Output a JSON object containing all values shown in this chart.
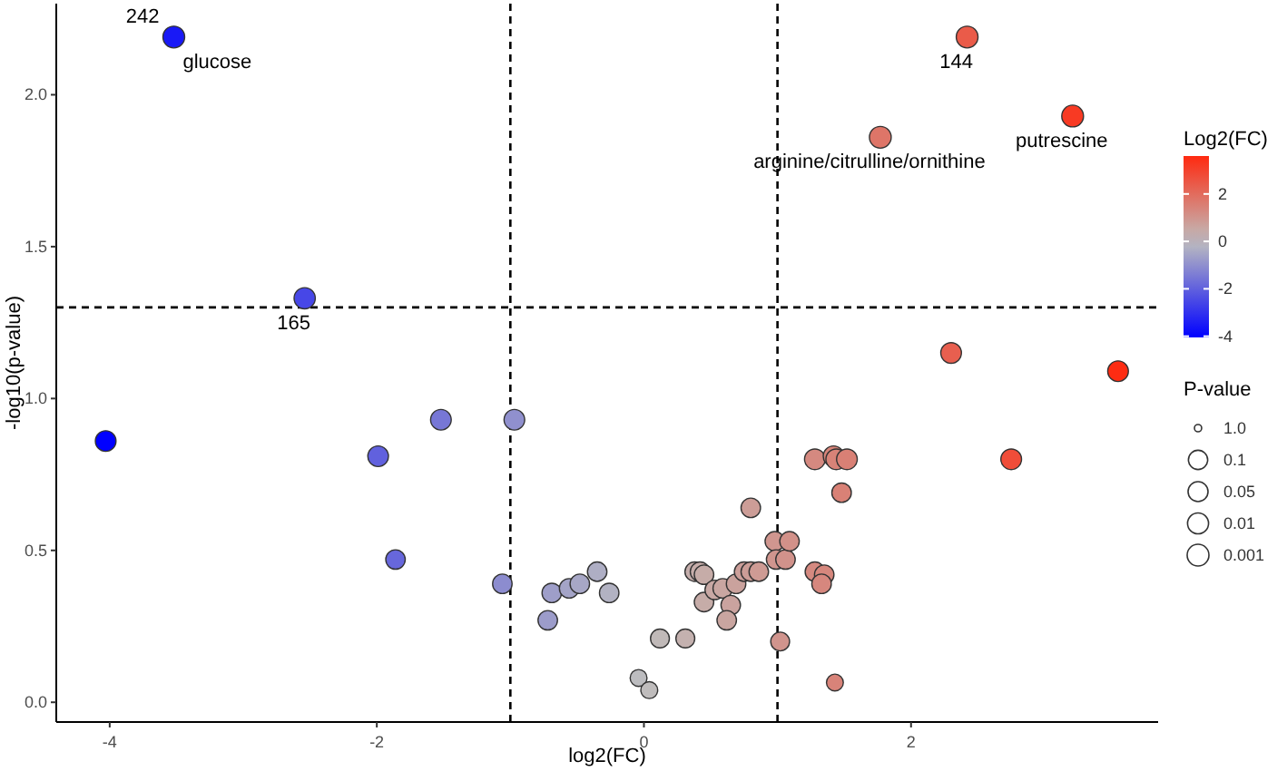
{
  "chart_data": {
    "type": "bubble",
    "xlabel": "log2(FC)",
    "ylabel": "-log10(p-value)",
    "clabel": "Log2(FC)",
    "legend_title": "P-value",
    "grid": false,
    "xlim": [
      -4.4,
      3.85
    ],
    "xticks": [
      -4,
      -2,
      0,
      2
    ],
    "ylim": [
      -0.065,
      2.3
    ],
    "yticks": [
      {
        "value": 0,
        "label": "0.0"
      },
      0.5,
      {
        "value": 1,
        "label": "1.0"
      },
      1.5,
      {
        "value": 2,
        "label": "2.0"
      }
    ],
    "clim": [
      -4.05,
      3.6
    ],
    "cticks": [
      -4,
      -2,
      0,
      2
    ],
    "size_legend": [
      {
        "value": 0.11,
        "label": "1.0"
      },
      {
        "value": 0.78,
        "label": "0.1"
      },
      {
        "value": 0.84,
        "label": "0.05"
      },
      {
        "value": 0.93,
        "label": "0.01"
      },
      {
        "value": 1,
        "label": "0.001"
      }
    ],
    "x": [
      -3.52,
      -2.54,
      -4.03,
      -1.99,
      -1.52,
      -0.97,
      -1.86,
      -1.06,
      -0.69,
      -0.72,
      -0.56,
      -0.48,
      -0.35,
      -0.26,
      -0.04,
      0.04,
      0.12,
      0.31,
      0.38,
      0.42,
      0.45,
      0.45,
      0.53,
      0.59,
      0.65,
      0.62,
      0.69,
      0.75,
      0.8,
      0.86,
      0.8,
      0.98,
      0.99,
      1.06,
      1.09,
      1.02,
      1.28,
      1.35,
      1.33,
      1.43,
      1.48,
      1.28,
      1.42,
      1.44,
      1.52,
      2.75,
      3.55,
      2.3,
      2.42,
      3.21,
      1.77
    ],
    "values": [
      2.19,
      1.33,
      0.86,
      0.81,
      0.93,
      0.93,
      0.47,
      0.39,
      0.36,
      0.27,
      0.375,
      0.39,
      0.43,
      0.36,
      0.08,
      0.04,
      0.21,
      0.21,
      0.43,
      0.43,
      0.42,
      0.33,
      0.37,
      0.375,
      0.32,
      0.27,
      0.39,
      0.43,
      0.43,
      0.43,
      0.64,
      0.53,
      0.47,
      0.47,
      0.53,
      0.2,
      0.43,
      0.42,
      0.39,
      0.065,
      0.69,
      0.8,
      0.81,
      0.8,
      0.8,
      0.8,
      1.09,
      1.15,
      2.19,
      1.93,
      1.86
    ],
    "sizes": [
      1,
      0.95,
      0.9,
      0.9,
      0.9,
      0.9,
      0.8,
      0.8,
      0.8,
      0.8,
      0.8,
      0.8,
      0.8,
      0.8,
      0.6,
      0.6,
      0.75,
      0.75,
      0.8,
      0.8,
      0.8,
      0.8,
      0.8,
      0.8,
      0.8,
      0.8,
      0.8,
      0.8,
      0.8,
      0.8,
      0.8,
      0.8,
      0.8,
      0.8,
      0.8,
      0.75,
      0.8,
      0.8,
      0.8,
      0.6,
      0.8,
      0.9,
      0.9,
      0.9,
      0.9,
      0.9,
      0.9,
      0.9,
      1,
      1,
      1
    ],
    "cvalues": [
      -3.52,
      -2.54,
      -4.03,
      -1.99,
      -1.52,
      -0.97,
      -1.86,
      -1.06,
      -0.69,
      -0.72,
      -0.56,
      -0.48,
      -0.35,
      -0.26,
      -0.04,
      0.04,
      0.12,
      0.31,
      0.38,
      0.42,
      0.45,
      0.45,
      0.53,
      0.59,
      0.65,
      0.62,
      0.69,
      0.75,
      0.8,
      0.86,
      0.8,
      0.98,
      0.99,
      1.06,
      1.09,
      1.02,
      1.28,
      1.35,
      1.33,
      1.43,
      1.48,
      1.28,
      1.42,
      1.44,
      1.52,
      2.75,
      3.55,
      2.3,
      2.42,
      3.21,
      1.77
    ],
    "ref_lines": [
      {
        "axis": "x",
        "value": -1,
        "line_style": "dashed"
      },
      {
        "axis": "x",
        "value": 1,
        "line_style": "dashed"
      },
      {
        "axis": "y",
        "value": 1.3,
        "line_style": "dashed"
      }
    ],
    "annotations": [
      {
        "text": "242",
        "x": -3.52,
        "y": 2.19
      },
      {
        "text": "glucose",
        "x": -3.52,
        "y": 2.19
      },
      {
        "text": "165",
        "x": -2.54,
        "y": 1.33
      },
      {
        "text": "144",
        "x": 2.42,
        "y": 2.19
      },
      {
        "text": "putrescine",
        "x": 3.21,
        "y": 1.93
      },
      {
        "text": "arginine/citrulline/ornithine",
        "x": 1.77,
        "y": 1.86
      }
    ]
  }
}
